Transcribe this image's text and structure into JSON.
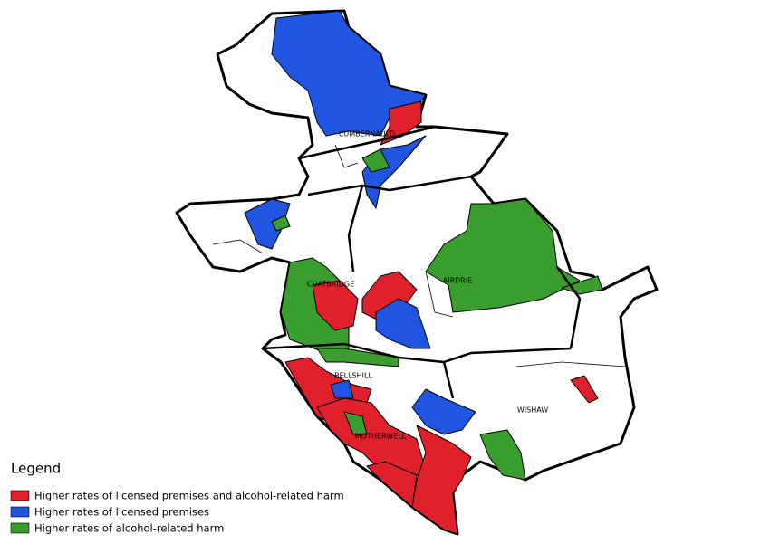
{
  "map": {
    "labels": [
      "CUMBERNAULD",
      "COATBRIDGE",
      "AIRDRIE",
      "BELLSHILL",
      "MOTHERWELL",
      "WISHAW"
    ],
    "legend": {
      "title": "Legend",
      "items": [
        {
          "label": "Higher rates of licensed premises and alcohol-related harm",
          "color": "#e0202a"
        },
        {
          "label": "Higher rates of licensed premises",
          "color": "#1f55e0"
        },
        {
          "label": "Higher rates of alcohol-related harm",
          "color": "#3a9e2f"
        }
      ]
    }
  }
}
